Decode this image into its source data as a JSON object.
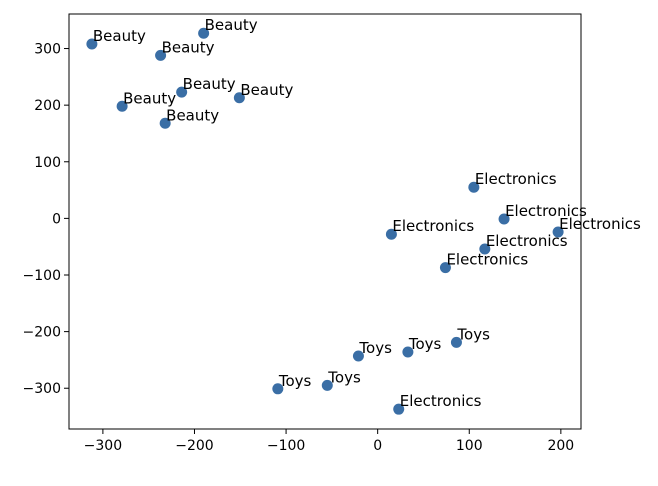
{
  "chart_data": {
    "type": "scatter",
    "title": "",
    "xlabel": "",
    "ylabel": "",
    "xlim": [
      -337,
      222
    ],
    "ylim": [
      -372,
      361
    ],
    "xticks": [
      -300,
      -200,
      -100,
      0,
      100,
      200
    ],
    "yticks": [
      -300,
      -200,
      -100,
      0,
      100,
      200,
      300
    ],
    "xtick_labels": [
      "−300",
      "−200",
      "−100",
      "0",
      "100",
      "200"
    ],
    "ytick_labels": [
      "−300",
      "−200",
      "−100",
      "0",
      "100",
      "200",
      "300"
    ],
    "grid": false,
    "marker_color": "#3a6ea5",
    "points": [
      {
        "x": -312,
        "y": 308,
        "label": "Beauty"
      },
      {
        "x": -190,
        "y": 327,
        "label": "Beauty"
      },
      {
        "x": -237,
        "y": 288,
        "label": "Beauty"
      },
      {
        "x": -214,
        "y": 223,
        "label": "Beauty"
      },
      {
        "x": -279,
        "y": 198,
        "label": "Beauty"
      },
      {
        "x": -151,
        "y": 213,
        "label": "Beauty"
      },
      {
        "x": -232,
        "y": 168,
        "label": "Beauty"
      },
      {
        "x": 105,
        "y": 55,
        "label": "Electronics"
      },
      {
        "x": 138,
        "y": -1,
        "label": "Electronics"
      },
      {
        "x": 197,
        "y": -24,
        "label": "Electronics"
      },
      {
        "x": 15,
        "y": -28,
        "label": "Electronics"
      },
      {
        "x": 117,
        "y": -54,
        "label": "Electronics"
      },
      {
        "x": 74,
        "y": -87,
        "label": "Electronics"
      },
      {
        "x": 23,
        "y": -337,
        "label": "Electronics"
      },
      {
        "x": 86,
        "y": -219,
        "label": "Toys"
      },
      {
        "x": 33,
        "y": -236,
        "label": "Toys"
      },
      {
        "x": -21,
        "y": -243,
        "label": "Toys"
      },
      {
        "x": -55,
        "y": -295,
        "label": "Toys"
      },
      {
        "x": -109,
        "y": -301,
        "label": "Toys"
      }
    ]
  }
}
